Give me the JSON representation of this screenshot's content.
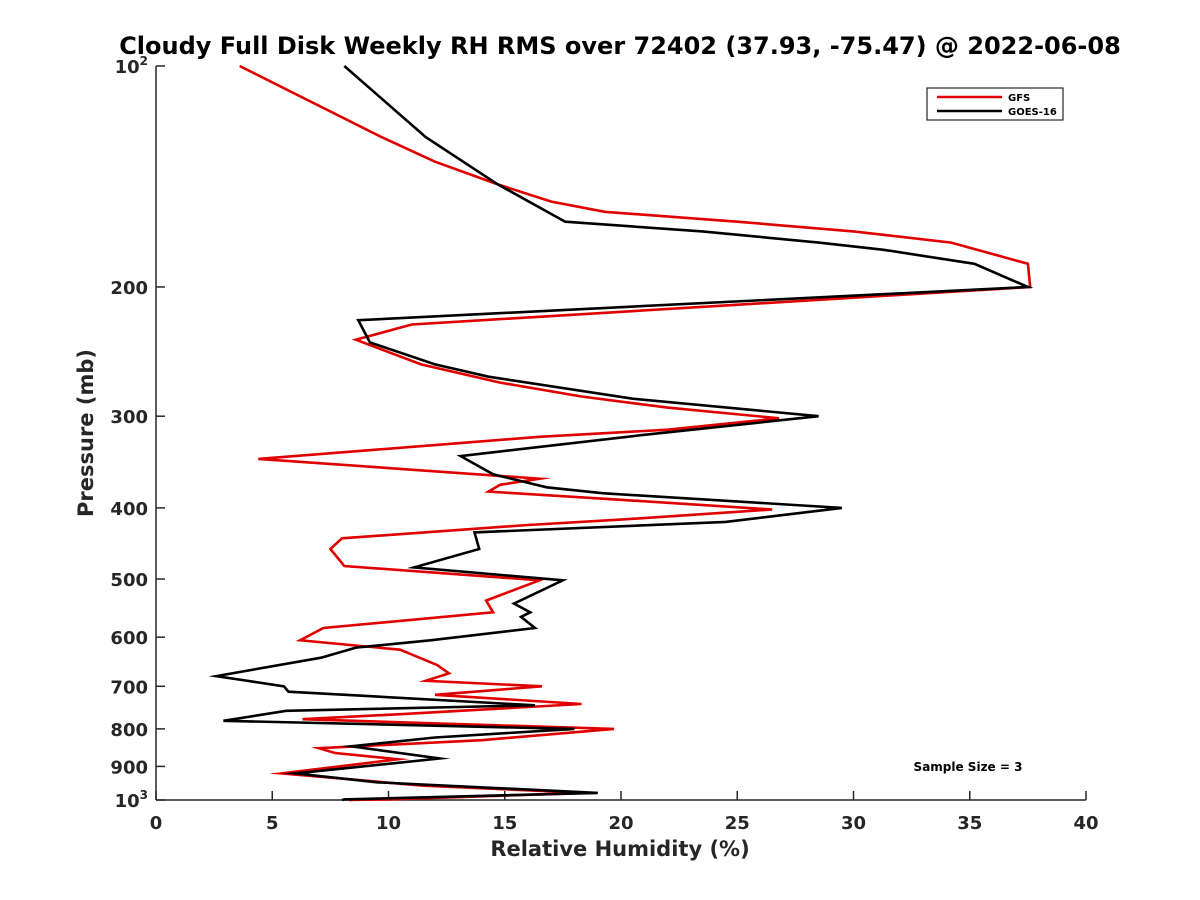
{
  "chart_data": {
    "type": "line",
    "title": "Cloudy Full Disk Weekly RH RMS over 72402 (37.93, -75.47) @ 2022-06-08",
    "xlabel": "Relative Humidity (%)",
    "ylabel": "Pressure (mb)",
    "xlim": [
      0,
      40
    ],
    "ylim": [
      100,
      1000
    ],
    "yscale": "log",
    "y_reversed": true,
    "grid": false,
    "x_ticks": [
      "0",
      "5",
      "10",
      "15",
      "20",
      "25",
      "30",
      "35",
      "40"
    ],
    "x_tick_values": [
      0,
      5,
      10,
      15,
      20,
      25,
      30,
      35,
      40
    ],
    "y_ticks": [
      {
        "value": 100,
        "base": "10",
        "sup": "2"
      },
      {
        "value": 200,
        "base": "200",
        "sup": ""
      },
      {
        "value": 300,
        "base": "300",
        "sup": ""
      },
      {
        "value": 400,
        "base": "400",
        "sup": ""
      },
      {
        "value": 500,
        "base": "500",
        "sup": ""
      },
      {
        "value": 600,
        "base": "600",
        "sup": ""
      },
      {
        "value": 700,
        "base": "700",
        "sup": ""
      },
      {
        "value": 800,
        "base": "800",
        "sup": ""
      },
      {
        "value": 900,
        "base": "900",
        "sup": ""
      },
      {
        "value": 1000,
        "base": "10",
        "sup": "3"
      }
    ],
    "legend_position": "top-right",
    "annotation": "Sample Size = 3",
    "series": [
      {
        "name": "GFS",
        "color": "#e00000",
        "points": [
          [
            3.6,
            100
          ],
          [
            9.7,
            125
          ],
          [
            12,
            135
          ],
          [
            14.7,
            145
          ],
          [
            17,
            153
          ],
          [
            19.3,
            158
          ],
          [
            25,
            163
          ],
          [
            30,
            168
          ],
          [
            34.2,
            174
          ],
          [
            37.5,
            186
          ],
          [
            37.6,
            200
          ],
          [
            11,
            225
          ],
          [
            8.6,
            236
          ],
          [
            11.4,
            255
          ],
          [
            14.8,
            270
          ],
          [
            18.3,
            282
          ],
          [
            22,
            292
          ],
          [
            26.8,
            302
          ],
          [
            22,
            313
          ],
          [
            16.5,
            320
          ],
          [
            4.4,
            343
          ],
          [
            16.5,
            365
          ],
          [
            14.8,
            372
          ],
          [
            14.3,
            380
          ],
          [
            20,
            390
          ],
          [
            26.5,
            402
          ],
          [
            20,
            415
          ],
          [
            16,
            422
          ],
          [
            8,
            440
          ],
          [
            7.5,
            455
          ],
          [
            8.1,
            480
          ],
          [
            16.5,
            502
          ],
          [
            14.2,
            535
          ],
          [
            14.5,
            555
          ],
          [
            7.2,
            583
          ],
          [
            6.2,
            606
          ],
          [
            10.5,
            624
          ],
          [
            12.1,
            655
          ],
          [
            12.6,
            672
          ],
          [
            11.6,
            688
          ],
          [
            16.6,
            700
          ],
          [
            12,
            719
          ],
          [
            18.3,
            740
          ],
          [
            10.8,
            763
          ],
          [
            6.3,
            776
          ],
          [
            19.7,
            800
          ],
          [
            14,
            829
          ],
          [
            7,
            850
          ],
          [
            7.7,
            863
          ],
          [
            10.4,
            880
          ],
          [
            5.4,
            920
          ],
          [
            11.5,
            956
          ],
          [
            18.5,
            978
          ],
          [
            10,
            998
          ],
          [
            8.3,
            1000
          ]
        ]
      },
      {
        "name": "GOES-16",
        "color": "#000000",
        "points": [
          [
            8.1,
            100
          ],
          [
            11.6,
            125
          ],
          [
            14.7,
            145
          ],
          [
            17.6,
            163
          ],
          [
            23.5,
            168
          ],
          [
            28.5,
            174
          ],
          [
            31.3,
            178
          ],
          [
            35.2,
            186
          ],
          [
            37.5,
            200
          ],
          [
            8.7,
            222
          ],
          [
            9.2,
            238
          ],
          [
            12,
            255
          ],
          [
            14.3,
            265
          ],
          [
            20.5,
            284
          ],
          [
            28.5,
            300
          ],
          [
            21,
            318
          ],
          [
            13.1,
            340
          ],
          [
            14.5,
            360
          ],
          [
            16.8,
            375
          ],
          [
            19.2,
            382
          ],
          [
            29.5,
            400
          ],
          [
            24.5,
            418
          ],
          [
            13.7,
            432
          ],
          [
            13.9,
            455
          ],
          [
            11.1,
            482
          ],
          [
            17.5,
            502
          ],
          [
            15.4,
            540
          ],
          [
            16.1,
            555
          ],
          [
            15.7,
            563
          ],
          [
            16.3,
            583
          ],
          [
            11.8,
            606
          ],
          [
            8.6,
            620
          ],
          [
            7.1,
            640
          ],
          [
            2.6,
            678
          ],
          [
            5.5,
            700
          ],
          [
            5.7,
            712
          ],
          [
            16.3,
            743
          ],
          [
            5.6,
            756
          ],
          [
            2.9,
            780
          ],
          [
            18,
            800
          ],
          [
            12,
            822
          ],
          [
            8.4,
            845
          ],
          [
            12.2,
            878
          ],
          [
            6,
            920
          ],
          [
            9.5,
            946
          ],
          [
            19,
            978
          ],
          [
            8.1,
            998
          ],
          [
            8,
            1000
          ]
        ]
      }
    ]
  }
}
